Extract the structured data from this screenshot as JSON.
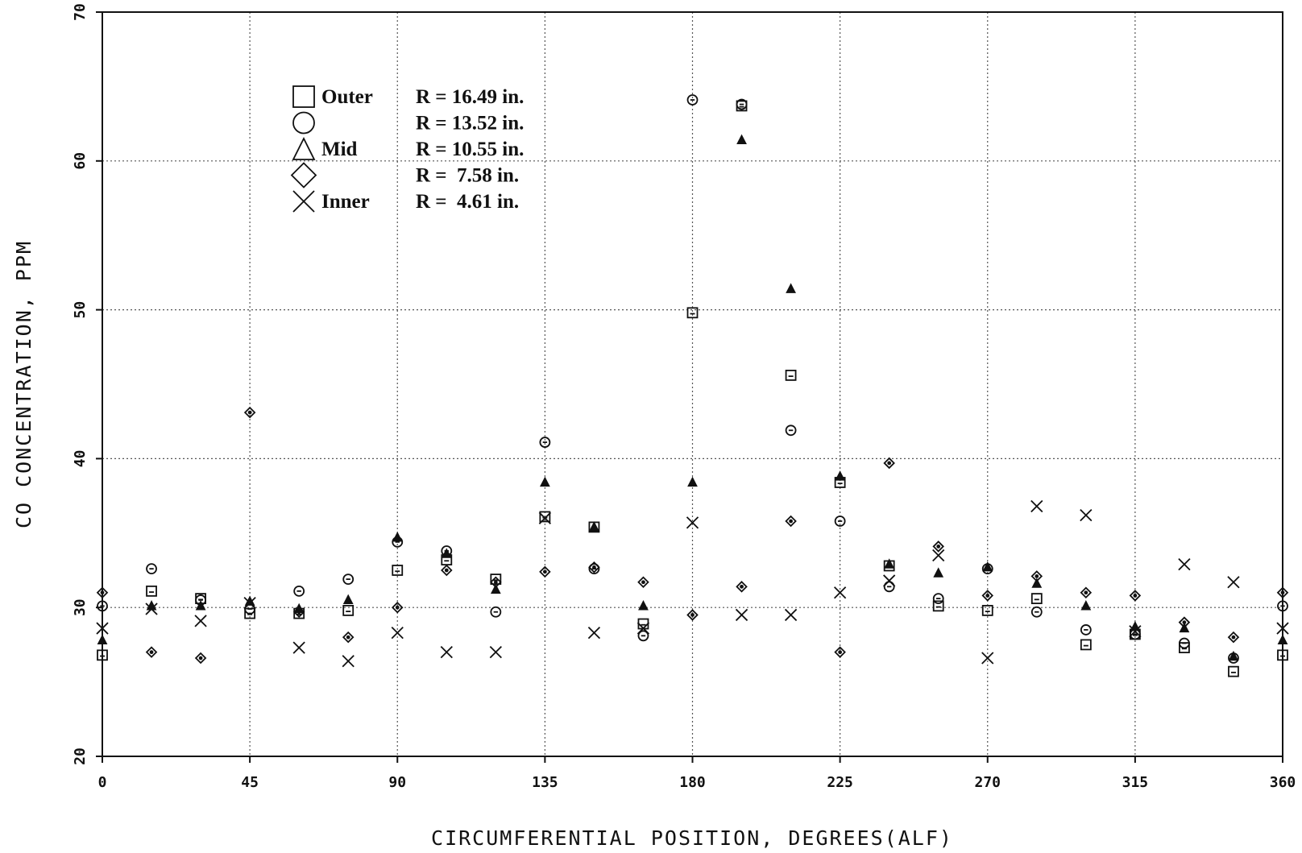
{
  "chart_data": {
    "type": "scatter",
    "xlabel": "CIRCUMFERENTIAL POSITION, DEGREES(ALF)",
    "ylabel": "CO CONCENTRATION, PPM",
    "xlim": [
      0,
      360
    ],
    "ylim": [
      20,
      70
    ],
    "x_ticks": [
      "0",
      "45",
      "90",
      "135",
      "180",
      "225",
      "270",
      "315",
      "360"
    ],
    "y_ticks": [
      "20",
      "30",
      "40",
      "50",
      "60",
      "70"
    ],
    "grid": true,
    "legend_position": "top-left",
    "legend": [
      {
        "marker": "square-icon",
        "label": "Outer",
        "radius": "R = 16.49 in."
      },
      {
        "marker": "circle-icon",
        "label": "",
        "radius": "R = 13.52 in."
      },
      {
        "marker": "triangle-icon",
        "label": "Mid",
        "radius": "R = 10.55 in."
      },
      {
        "marker": "diamond-icon",
        "label": "",
        "radius": "R =  7.58 in."
      },
      {
        "marker": "cross-icon",
        "label": "Inner",
        "radius": "R =  4.61 in."
      }
    ],
    "series": [
      {
        "marker": "square",
        "x": [
          0,
          15,
          30,
          45,
          60,
          75,
          90,
          105,
          120,
          135,
          150,
          165,
          180,
          195,
          210,
          225,
          240,
          255,
          270,
          285,
          300,
          315,
          330,
          345,
          360
        ],
        "y": [
          26.8,
          31.1,
          30.6,
          29.6,
          29.6,
          29.8,
          32.5,
          33.2,
          31.9,
          36.1,
          35.4,
          28.9,
          49.8,
          63.7,
          45.6,
          38.4,
          32.8,
          30.1,
          29.8,
          30.6,
          27.5,
          28.2,
          27.3,
          25.7,
          26.8
        ]
      },
      {
        "marker": "circle",
        "x": [
          0,
          15,
          30,
          45,
          60,
          75,
          90,
          105,
          120,
          135,
          150,
          165,
          180,
          195,
          210,
          225,
          240,
          255,
          270,
          285,
          300,
          315,
          330,
          345,
          360
        ],
        "y": [
          30.1,
          32.6,
          30.5,
          29.9,
          31.1,
          31.9,
          34.4,
          33.8,
          29.7,
          41.1,
          32.6,
          28.1,
          64.1,
          63.8,
          41.9,
          35.8,
          31.4,
          30.6,
          32.6,
          29.7,
          28.5,
          28.2,
          27.6,
          26.6,
          30.1
        ]
      },
      {
        "marker": "triangle",
        "x": [
          0,
          15,
          30,
          45,
          60,
          75,
          90,
          105,
          120,
          135,
          150,
          165,
          180,
          195,
          210,
          225,
          240,
          255,
          270,
          285,
          300,
          315,
          330,
          345,
          360
        ],
        "y": [
          27.8,
          30.1,
          30.1,
          30.4,
          29.9,
          30.5,
          34.7,
          33.6,
          31.2,
          38.4,
          35.4,
          30.1,
          38.4,
          61.4,
          51.4,
          38.8,
          32.9,
          32.3,
          32.7,
          31.6,
          30.1,
          28.7,
          28.6,
          26.7,
          27.8
        ]
      },
      {
        "marker": "diamond",
        "x": [
          0,
          15,
          30,
          45,
          60,
          75,
          90,
          105,
          120,
          135,
          150,
          165,
          180,
          195,
          210,
          225,
          240,
          255,
          270,
          285,
          300,
          315,
          330,
          345,
          360
        ],
        "y": [
          31.0,
          27.0,
          26.6,
          43.1,
          29.7,
          28.0,
          30.0,
          32.5,
          31.7,
          32.4,
          32.7,
          31.7,
          29.5,
          31.4,
          35.8,
          27.0,
          39.7,
          34.1,
          30.8,
          32.1,
          31.0,
          30.8,
          29.0,
          28.0,
          31.0
        ]
      },
      {
        "marker": "cross",
        "x": [
          0,
          15,
          30,
          45,
          60,
          75,
          90,
          105,
          120,
          135,
          150,
          165,
          180,
          195,
          210,
          225,
          240,
          255,
          270,
          285,
          300,
          315,
          330,
          345,
          360
        ],
        "y": [
          28.6,
          29.9,
          29.1,
          30.3,
          27.3,
          26.4,
          28.3,
          27.0,
          27.0,
          36.0,
          28.3,
          28.6,
          35.7,
          29.5,
          29.5,
          31.0,
          31.8,
          33.5,
          26.6,
          36.8,
          36.2,
          28.4,
          32.9,
          31.7,
          28.6
        ]
      }
    ]
  }
}
